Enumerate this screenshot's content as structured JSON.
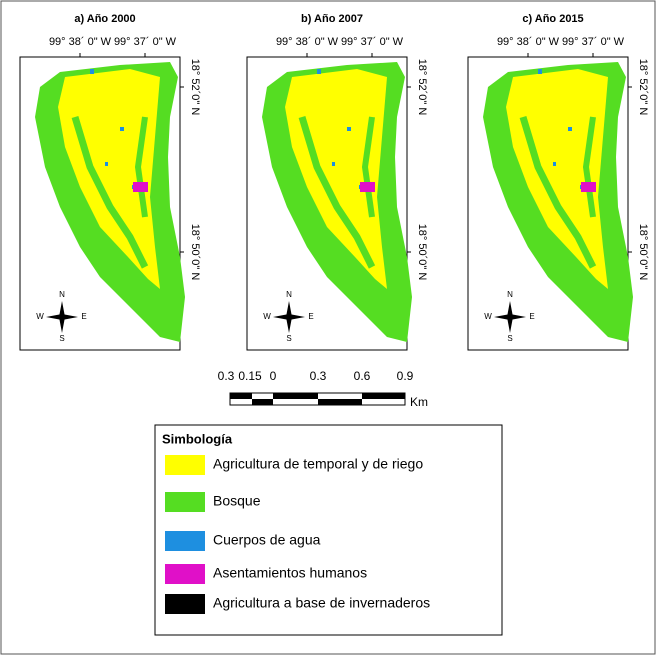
{
  "panels": [
    {
      "title": "a) Año 2000",
      "x_labels": [
        "99° 38´ 0\" W",
        "99° 37´ 0\" W"
      ],
      "y_labels": [
        "18° 52´0\" N",
        "18° 50´0\" N"
      ],
      "compass": {
        "n": "N",
        "s": "S",
        "e": "E",
        "w": "W"
      }
    },
    {
      "title": "b) Año 2007",
      "x_labels": [
        "99° 38´ 0\" W",
        "99° 37´ 0\" W"
      ],
      "y_labels": [
        "18° 52´0\" N",
        "18° 50´0\" N"
      ],
      "compass": {
        "n": "N",
        "s": "S",
        "e": "E",
        "w": "W"
      }
    },
    {
      "title": "c) Año 2015",
      "x_labels": [
        "99° 38´ 0\" W",
        "99° 37´ 0\" W"
      ],
      "y_labels": [
        "18° 52´0\" N",
        "18° 50´0\" N"
      ],
      "compass": {
        "n": "N",
        "s": "S",
        "e": "E",
        "w": "W"
      }
    }
  ],
  "scale": {
    "labels": [
      "0.3",
      "0.15",
      "0",
      "0.3",
      "0.6",
      "0.9"
    ],
    "unit": "Km"
  },
  "legend": {
    "title": "Simbología",
    "items": [
      {
        "label": "Agricultura de temporal y de riego",
        "color": "#ffff00"
      },
      {
        "label": "Bosque",
        "color": "#55dd22"
      },
      {
        "label": "Cuerpos de agua",
        "color": "#1e8fe0"
      },
      {
        "label": "Asentamientos humanos",
        "color": "#e010c8"
      },
      {
        "label": "Agricultura a base de invernaderos",
        "color": "#000000"
      }
    ]
  }
}
